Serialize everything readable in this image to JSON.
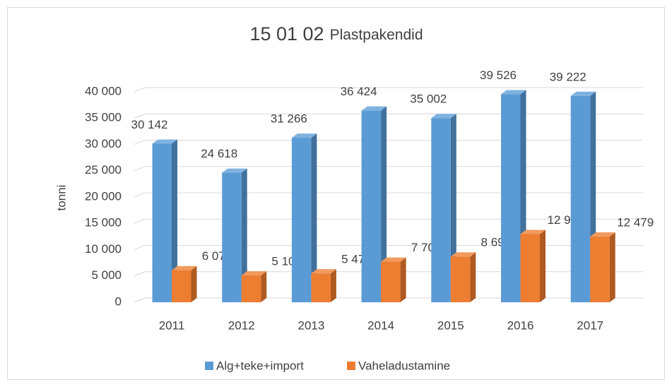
{
  "chart_data": {
    "type": "bar3d",
    "title": "15 01 02",
    "subtitle": "Plastpakendid",
    "y_label": "tonni",
    "categories": [
      "2011",
      "2012",
      "2013",
      "2014",
      "2015",
      "2016",
      "2017"
    ],
    "series": [
      {
        "name": "Alg+teke+import",
        "color": "#5b9bd5",
        "side": "#41719c",
        "top": "#7fb2e0",
        "values": [
          30142,
          24618,
          31266,
          36424,
          35002,
          39526,
          39222
        ],
        "value_labels": [
          "30 142",
          "24 618",
          "31 266",
          "36 424",
          "35 002",
          "39 526",
          "39 222"
        ]
      },
      {
        "name": "Vaheladustamine",
        "color": "#ed7d31",
        "side": "#ae5a21",
        "top": "#f29a5e",
        "values": [
          6078,
          5102,
          5479,
          7709,
          8690,
          12957,
          12479
        ],
        "value_labels": [
          "6 078",
          "5 102",
          "5 479",
          "7 709",
          "8 690",
          "12 957",
          "12 479"
        ]
      }
    ],
    "ylim": [
      0,
      40000
    ],
    "yticks": [
      {
        "value": 0,
        "label": "0"
      },
      {
        "value": 5000,
        "label": "5 000"
      },
      {
        "value": 10000,
        "label": "10 000"
      },
      {
        "value": 15000,
        "label": "15 000"
      },
      {
        "value": 20000,
        "label": "20 000"
      },
      {
        "value": 25000,
        "label": "25 000"
      },
      {
        "value": 30000,
        "label": "30 000"
      },
      {
        "value": 35000,
        "label": "35 000"
      },
      {
        "value": 40000,
        "label": "40 000"
      }
    ],
    "grid": true,
    "legend": "bottom"
  }
}
